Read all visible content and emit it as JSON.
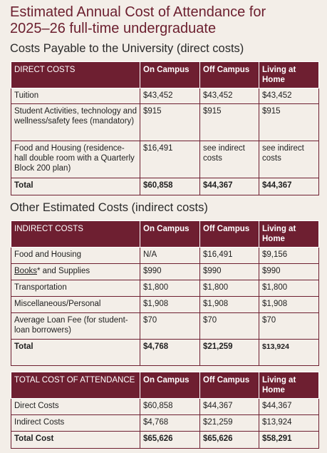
{
  "title": {
    "line1": "Estimated Annual Cost of Attendance for",
    "line2": "2025–26 full-time undergraduate"
  },
  "direct": {
    "heading": "Costs Payable to the University (direct costs)",
    "columns": [
      "DIRECT COSTS",
      "On Campus",
      "Off Campus",
      "Living at Home"
    ],
    "rows": [
      {
        "label": "Tuition",
        "on": "$43,452",
        "off": "$43,452",
        "home": "$43,452"
      },
      {
        "label": "Student Activities, technology and wellness/safety fees (mandatory)",
        "on": "$915",
        "off": "$915",
        "home": "$915"
      },
      {
        "label": "Food and Housing (residence-hall double room with a Quarterly Block 200 plan)",
        "on": "$16,491",
        "off": "see indirect costs",
        "home": "see indirect costs"
      }
    ],
    "total": {
      "label": "Total",
      "on": "$60,858",
      "off": "$44,367",
      "home": "$44,367"
    }
  },
  "indirect": {
    "heading": "Other Estimated Costs (indirect costs)",
    "columns": [
      "INDIRECT COSTS",
      "On Campus",
      "Off Campus",
      "Living at Home"
    ],
    "rows": [
      {
        "label": "Food and Housing",
        "on": "N/A",
        "off": "$16,491",
        "home": "$9,156"
      },
      {
        "label_link": "Books",
        "label_rest": "* and Supplies",
        "on": "$990",
        "off": "$990",
        "home": "$990"
      },
      {
        "label": "Transportation",
        "on": "$1,800",
        "off": "$1,800",
        "home": "$1,800"
      },
      {
        "label": "Miscellaneous/Personal",
        "on": "$1,908",
        "off": "$1,908",
        "home": "$1,908"
      },
      {
        "label": "Average Loan Fee (for student-loan borrowers)",
        "on": "$70",
        "off": "$70",
        "home": "$70"
      }
    ],
    "total": {
      "label": "Total",
      "on": "$4,768",
      "off": "$21,259",
      "home": "$13,924"
    }
  },
  "summary": {
    "columns": [
      "TOTAL COST OF ATTENDANCE",
      "On Campus",
      "Off Campus",
      "Living at Home"
    ],
    "rows": [
      {
        "label": "Direct Costs",
        "on": "$60,858",
        "off": "$44,367",
        "home": "$44,367"
      },
      {
        "label": "Indirect Costs",
        "on": "$4,768",
        "off": "$21,259",
        "home": "$13,924"
      }
    ],
    "total": {
      "label": "Total Cost",
      "on": "$65,626",
      "off": "$65,626",
      "home": "$58,291"
    }
  }
}
